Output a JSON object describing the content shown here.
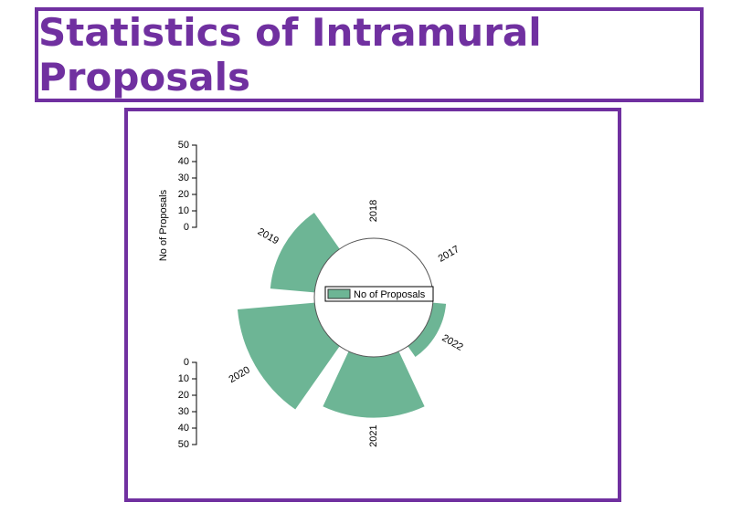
{
  "chart_data": {
    "type": "radial-bar",
    "title": "Statistics of Intramural Proposals",
    "categories": [
      "2018",
      "2017",
      "2022",
      "2021",
      "2020",
      "2019"
    ],
    "series": [
      {
        "name": "No of Proposals",
        "color": "#6db595",
        "values": [
          0,
          0,
          8,
          37,
          47,
          27
        ]
      }
    ],
    "y_label": "No of Proposals",
    "ylim": [
      0,
      50
    ],
    "yticks": [
      0,
      10,
      20,
      30,
      40,
      50
    ]
  }
}
